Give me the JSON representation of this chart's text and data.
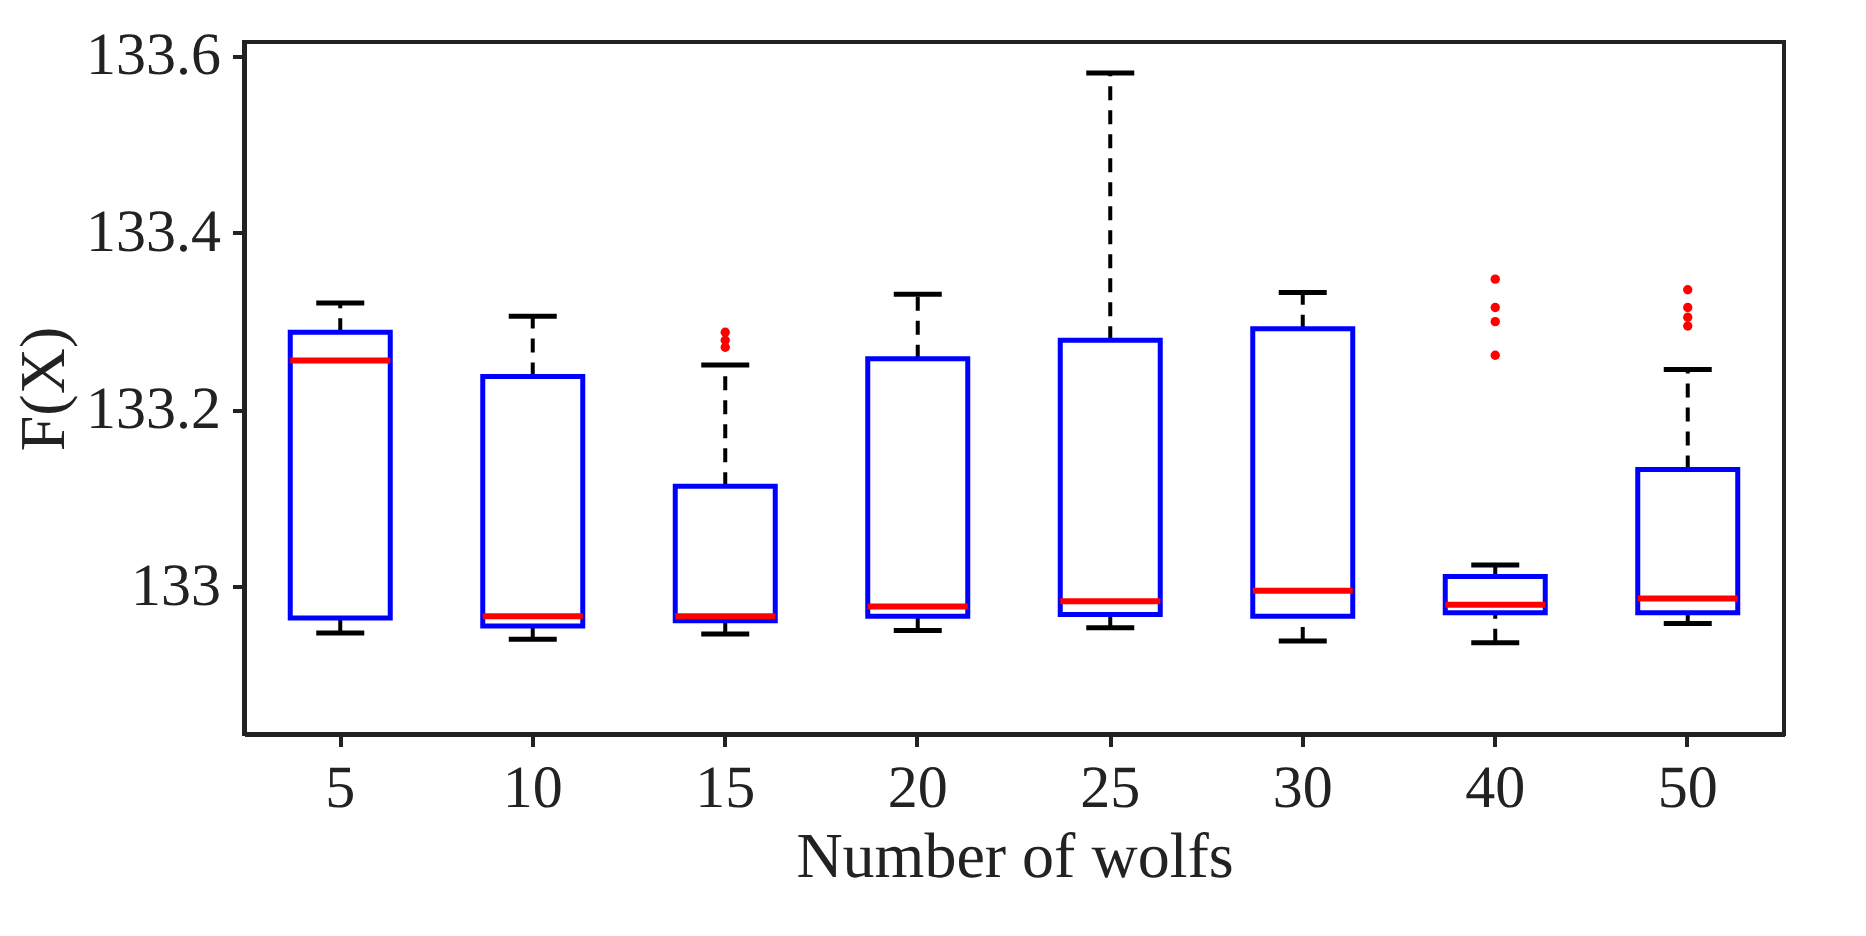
{
  "chart_data": {
    "type": "box",
    "xlabel": "Number of wolfs",
    "ylabel": "F(X)",
    "categories": [
      "5",
      "10",
      "15",
      "20",
      "25",
      "30",
      "40",
      "50"
    ],
    "ylim": [
      132.833,
      133.615
    ],
    "yticks": [
      133,
      133.2,
      133.4,
      133.6
    ],
    "grid": false,
    "series": [
      {
        "color": "#0000ff",
        "boxes": [
          {
            "low": 132.947,
            "q1": 132.964,
            "median": 133.255,
            "q3": 133.287,
            "high": 133.32
          },
          {
            "low": 132.94,
            "q1": 132.955,
            "median": 132.966,
            "q3": 133.237,
            "high": 133.305
          },
          {
            "low": 132.946,
            "q1": 132.961,
            "median": 132.966,
            "q3": 133.113,
            "high": 133.25,
            "outliers": [
              133.287,
              133.278,
              133.27
            ]
          },
          {
            "low": 132.95,
            "q1": 132.966,
            "median": 132.977,
            "q3": 133.257,
            "high": 133.33
          },
          {
            "low": 132.953,
            "q1": 132.968,
            "median": 132.983,
            "q3": 133.278,
            "high": 133.58
          },
          {
            "low": 132.938,
            "q1": 132.966,
            "median": 132.995,
            "q3": 133.291,
            "high": 133.332
          },
          {
            "low": 132.936,
            "q1": 132.97,
            "median": 132.979,
            "q3": 133.011,
            "high": 133.024,
            "outliers": [
              133.347,
              133.315,
              133.299,
              133.261
            ]
          },
          {
            "low": 132.958,
            "q1": 132.97,
            "median": 132.986,
            "q3": 133.132,
            "high": 133.245,
            "outliers": [
              133.335,
              133.315,
              133.304,
              133.294
            ]
          }
        ]
      }
    ]
  }
}
